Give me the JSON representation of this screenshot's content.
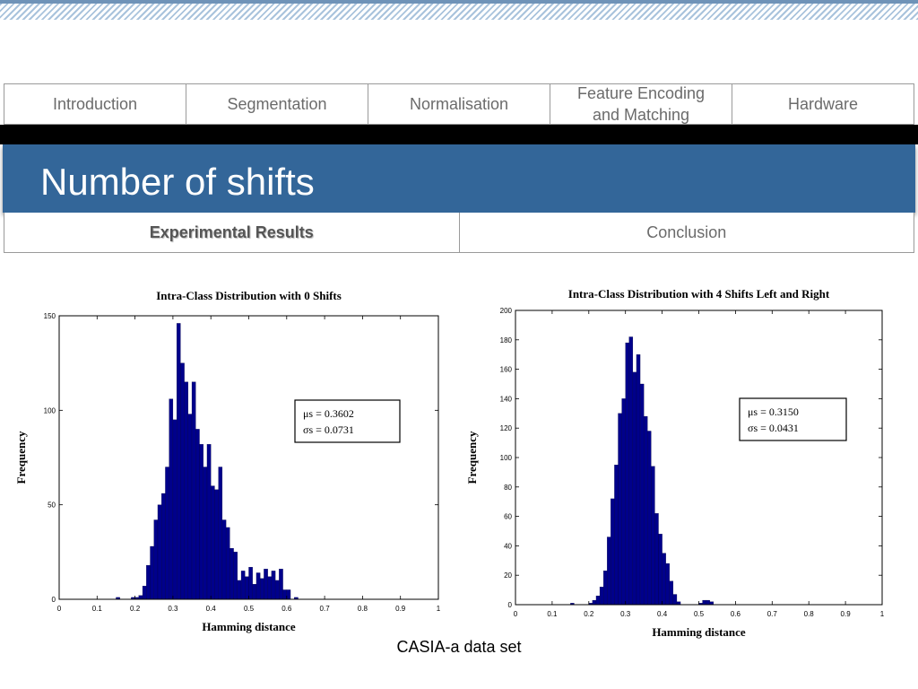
{
  "nav": {
    "items": [
      {
        "label": "Introduction"
      },
      {
        "label": "Segmentation"
      },
      {
        "label": "Normalisation"
      },
      {
        "label": "Feature Encoding\nand Matching"
      },
      {
        "label": "Hardware"
      }
    ]
  },
  "slide": {
    "title": "Number of shifts",
    "subnav": [
      {
        "label": "Experimental Results",
        "active": true
      },
      {
        "label": "Conclusion",
        "active": false
      }
    ],
    "caption": "CASIA-a data set"
  },
  "colors": {
    "title_bar": "#336699",
    "bar_fill": "#00008b"
  },
  "chart_data": [
    {
      "type": "bar",
      "title": "Intra-Class Distribution with 0 Shifts",
      "xlabel": "Hamming distance",
      "ylabel": "Frequency",
      "xlim": [
        0,
        1
      ],
      "ylim": [
        0,
        150
      ],
      "xticks": [
        "0",
        "0.1",
        "0.2",
        "0.3",
        "0.4",
        "0.5",
        "0.6",
        "0.7",
        "0.8",
        "0.9",
        "1"
      ],
      "yticks": [
        "0",
        "50",
        "100",
        "150"
      ],
      "bin_width": 0.01,
      "x": [
        0.15,
        0.19,
        0.2,
        0.21,
        0.22,
        0.23,
        0.24,
        0.25,
        0.26,
        0.27,
        0.28,
        0.29,
        0.3,
        0.31,
        0.32,
        0.33,
        0.34,
        0.35,
        0.36,
        0.37,
        0.38,
        0.39,
        0.4,
        0.41,
        0.42,
        0.43,
        0.44,
        0.45,
        0.46,
        0.47,
        0.48,
        0.49,
        0.5,
        0.51,
        0.52,
        0.53,
        0.54,
        0.55,
        0.56,
        0.57,
        0.58,
        0.59,
        0.6,
        0.62
      ],
      "values": [
        1,
        1,
        1,
        2,
        7,
        18,
        28,
        42,
        50,
        56,
        70,
        106,
        95,
        146,
        125,
        115,
        98,
        115,
        90,
        82,
        70,
        82,
        60,
        58,
        70,
        42,
        38,
        27,
        25,
        10,
        15,
        12,
        17,
        8,
        14,
        11,
        16,
        12,
        15,
        10,
        16,
        5,
        5,
        1
      ],
      "stats": {
        "mu": "μs = 0.3602",
        "sigma": "σs = 0.0731"
      }
    },
    {
      "type": "bar",
      "title": "Intra-Class Distribution with 4 Shifts Left and Right",
      "xlabel": "Hamming distance",
      "ylabel": "Frequency",
      "xlim": [
        0,
        1
      ],
      "ylim": [
        0,
        200
      ],
      "xticks": [
        "0",
        "0.1",
        "0.2",
        "0.3",
        "0.4",
        "0.5",
        "0.6",
        "0.7",
        "0.8",
        "0.9",
        "1"
      ],
      "yticks": [
        "0",
        "20",
        "40",
        "60",
        "80",
        "100",
        "120",
        "140",
        "160",
        "180",
        "200"
      ],
      "bin_width": 0.01,
      "x": [
        0.15,
        0.2,
        0.21,
        0.22,
        0.23,
        0.24,
        0.25,
        0.26,
        0.27,
        0.28,
        0.29,
        0.3,
        0.31,
        0.32,
        0.33,
        0.34,
        0.35,
        0.36,
        0.37,
        0.38,
        0.39,
        0.4,
        0.41,
        0.42,
        0.43,
        0.44,
        0.5,
        0.51,
        0.52,
        0.53
      ],
      "values": [
        1,
        1,
        3,
        6,
        12,
        23,
        46,
        72,
        95,
        130,
        140,
        178,
        182,
        158,
        170,
        150,
        128,
        118,
        94,
        62,
        48,
        35,
        28,
        16,
        7,
        2,
        1,
        3,
        3,
        2
      ],
      "stats": {
        "mu": "μs = 0.3150",
        "sigma": "σs = 0.0431"
      }
    }
  ]
}
